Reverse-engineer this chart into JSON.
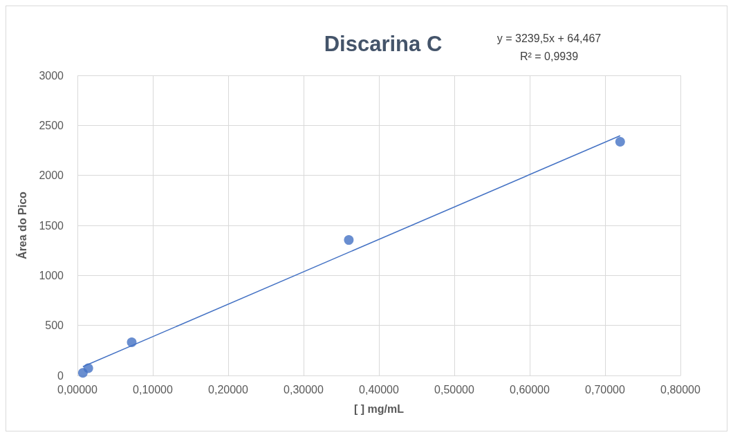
{
  "chart_data": {
    "type": "scatter",
    "title": "Discarina C",
    "xlabel": "[ ] mg/mL",
    "ylabel": "Área do Pico",
    "annotations": [
      "y = 3239,5x + 64,467",
      "R² = 0,9939"
    ],
    "x": [
      0.0072,
      0.0144,
      0.072,
      0.36,
      0.72
    ],
    "series": [
      {
        "color": "#4472c4",
        "values": [
          26,
          73,
          332,
          1354,
          2336
        ]
      },
      {
        "type": "line",
        "marker": "none",
        "color": "#4472c4",
        "x": [
          0.0072,
          0.72
        ],
        "values": [
          88,
          2397
        ]
      }
    ],
    "xlim": [
      0,
      0.8
    ],
    "xticks": [
      {
        "value": 0,
        "label": "0,00000"
      },
      {
        "value": 0.1,
        "label": "0,10000"
      },
      {
        "value": 0.2,
        "label": "0,20000"
      },
      {
        "value": 0.3,
        "label": "0,30000"
      },
      {
        "value": 0.4,
        "label": "0,40000"
      },
      {
        "value": 0.5,
        "label": "0,50000"
      },
      {
        "value": 0.6,
        "label": "0,60000"
      },
      {
        "value": 0.7,
        "label": "0,70000"
      },
      {
        "value": 0.8,
        "label": "0,80000"
      }
    ],
    "ylim": [
      0,
      3000
    ],
    "yticks": [
      0,
      500,
      1000,
      1500,
      2000,
      2500,
      3000
    ],
    "grid": true,
    "marker": "circle",
    "line_style": "solid"
  }
}
